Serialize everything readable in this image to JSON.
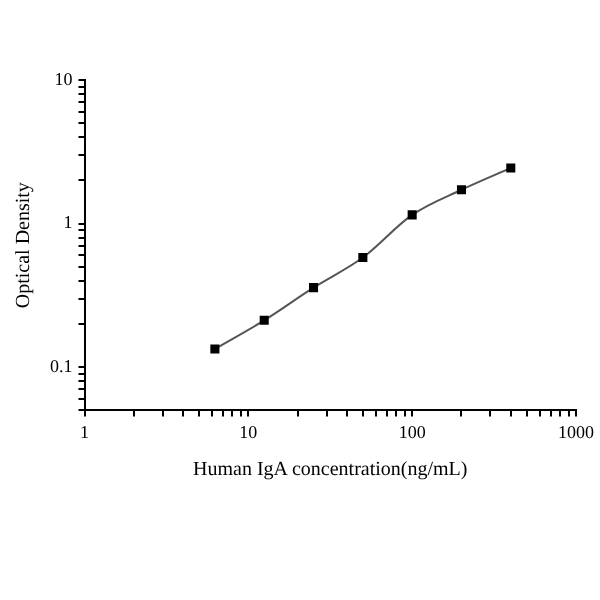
{
  "chart_data": {
    "type": "line",
    "xlabel": "Human IgA concentration(ng/mL)",
    "ylabel": "Optical Density",
    "x": [
      6.25,
      12.5,
      25,
      50,
      100,
      200,
      400
    ],
    "series": [
      {
        "color": "#000000",
        "values": [
          0.134,
          0.212,
          0.358,
          0.58,
          1.15,
          1.72,
          2.44
        ]
      }
    ],
    "log": "xy",
    "xlim": [
      1,
      1000
    ],
    "ylim": [
      0.05,
      10
    ],
    "xticks": [
      1,
      {
        "value": 2,
        "label": null
      },
      {
        "value": 3,
        "label": null
      },
      {
        "value": 4,
        "label": null
      },
      {
        "value": 5,
        "label": null
      },
      {
        "value": 6,
        "label": null
      },
      {
        "value": 7,
        "label": null
      },
      {
        "value": 8,
        "label": null
      },
      {
        "value": 9,
        "label": null
      },
      10,
      {
        "value": 20,
        "label": null
      },
      {
        "value": 30,
        "label": null
      },
      {
        "value": 40,
        "label": null
      },
      {
        "value": 50,
        "label": null
      },
      {
        "value": 60,
        "label": null
      },
      {
        "value": 70,
        "label": null
      },
      {
        "value": 80,
        "label": null
      },
      {
        "value": 90,
        "label": null
      },
      100,
      {
        "value": 200,
        "label": null
      },
      {
        "value": 300,
        "label": null
      },
      {
        "value": 400,
        "label": null
      },
      {
        "value": 500,
        "label": null
      },
      {
        "value": 600,
        "label": null
      },
      {
        "value": 700,
        "label": null
      },
      {
        "value": 800,
        "label": null
      },
      {
        "value": 900,
        "label": null
      },
      1000
    ],
    "yticks": [
      {
        "value": 0.05,
        "label": null
      },
      {
        "value": 0.06,
        "label": null
      },
      {
        "value": 0.07,
        "label": null
      },
      {
        "value": 0.08,
        "label": null
      },
      {
        "value": 0.09,
        "label": null
      },
      0.1,
      {
        "value": 0.2,
        "label": null
      },
      {
        "value": 0.3,
        "label": null
      },
      {
        "value": 0.4,
        "label": null
      },
      {
        "value": 0.5,
        "label": null
      },
      {
        "value": 0.6,
        "label": null
      },
      {
        "value": 0.7,
        "label": null
      },
      {
        "value": 0.8,
        "label": null
      },
      {
        "value": 0.9,
        "label": null
      },
      1,
      {
        "value": 2,
        "label": null
      },
      {
        "value": 3,
        "label": null
      },
      {
        "value": 4,
        "label": null
      },
      {
        "value": 5,
        "label": null
      },
      {
        "value": 6,
        "label": null
      },
      {
        "value": 7,
        "label": null
      },
      {
        "value": 8,
        "label": null
      },
      {
        "value": 9,
        "label": null
      },
      10
    ],
    "grid": false,
    "legend": false,
    "marker": "square",
    "line_style": "solid"
  }
}
